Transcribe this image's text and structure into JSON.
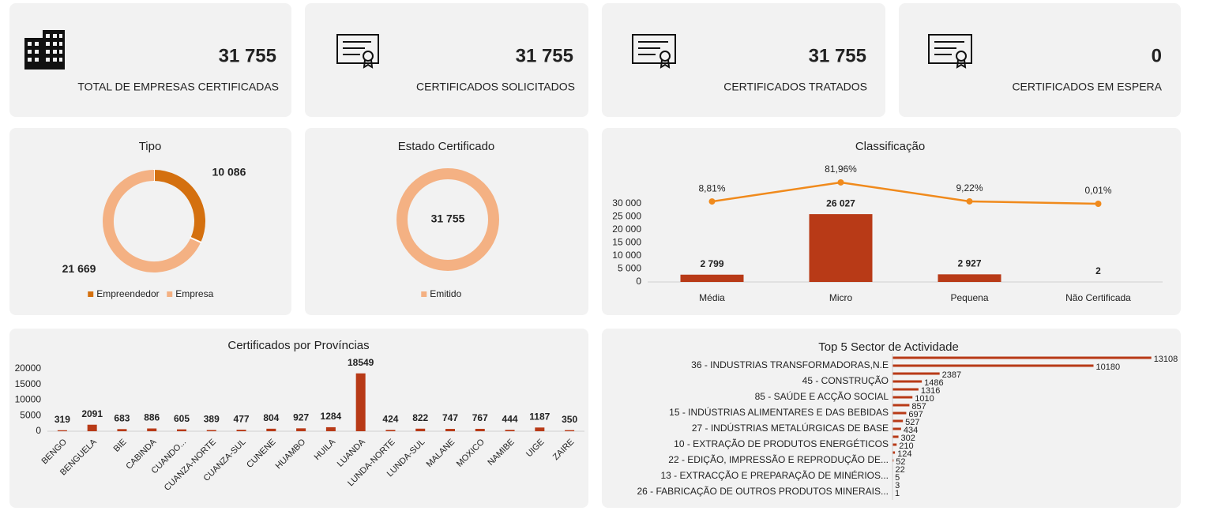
{
  "kpis": [
    {
      "value": "31 755",
      "label": "TOTAL DE EMPRESAS CERTIFICADAS"
    },
    {
      "value": "31 755",
      "label": "CERTIFICADOS SOLICITADOS"
    },
    {
      "value": "31 755",
      "label": "CERTIFICADOS TRATADOS"
    },
    {
      "value": "0",
      "label": "CERTIFICADOS EM ESPERA"
    }
  ],
  "chart_data": [
    {
      "type": "pie",
      "donut": true,
      "title": "Tipo",
      "categories": [
        "Empreendedor",
        "Empresa"
      ],
      "values": [
        10086,
        21669
      ],
      "value_labels": [
        "10 086",
        "21 669"
      ],
      "colors": [
        "#d4700f",
        "#f4b183"
      ],
      "legend": "bottom"
    },
    {
      "type": "pie",
      "donut": true,
      "title": "Estado Certificado",
      "categories": [
        "Emitido"
      ],
      "values": [
        31755
      ],
      "value_labels": [
        "31 755"
      ],
      "colors": [
        "#f4b183"
      ],
      "legend": "bottom"
    },
    {
      "type": "bar",
      "title": "Classificação",
      "categories": [
        "Média",
        "Micro",
        "Pequena",
        "Não Certificada"
      ],
      "series": [
        {
          "type": "bar",
          "color": "#b83a17",
          "values": [
            2799,
            26027,
            2927,
            2
          ],
          "value_labels": [
            "2 799",
            "26 027",
            "2 927",
            "2"
          ]
        },
        {
          "type": "line",
          "axis": "y2",
          "color": "#f08a1c",
          "values": [
            8.81,
            81.96,
            9.22,
            0.01
          ],
          "value_labels": [
            "8,81%",
            "81,96%",
            "9,22%",
            "0,01%"
          ]
        }
      ],
      "ylim": [
        0,
        40000
      ],
      "yticks": [
        {
          "value": 0,
          "label": "0"
        },
        {
          "value": 5000,
          "label": "5 000"
        },
        {
          "value": 10000,
          "label": "10 000"
        },
        {
          "value": 15000,
          "label": "15 000"
        },
        {
          "value": 20000,
          "label": "20 000"
        },
        {
          "value": 25000,
          "label": "25 000"
        },
        {
          "value": 30000,
          "label": "30 000"
        }
      ],
      "y2lim": [
        -300,
        100
      ]
    },
    {
      "type": "bar",
      "title": "Certificados por Províncias",
      "color": "#b83a17",
      "categories": [
        "BENGO",
        "BENGUELA",
        "BIE",
        "CABINDA",
        "CUANDO...",
        "CUANZA-NORTE",
        "CUANZA-SUL",
        "CUNENE",
        "HUAMBO",
        "HUILA",
        "LUANDA",
        "LUNDA-NORTE",
        "LUNDA-SUL",
        "MALANE",
        "MOXICO",
        "NAMIBE",
        "UIGE",
        "ZAIRE"
      ],
      "values": [
        319,
        2091,
        683,
        886,
        605,
        389,
        477,
        804,
        927,
        1284,
        18549,
        424,
        822,
        747,
        767,
        444,
        1187,
        350
      ],
      "ylim": [
        0,
        20000
      ],
      "yticks": [
        0,
        5000,
        10000,
        15000,
        20000
      ]
    },
    {
      "type": "bar",
      "orientation": "horizontal",
      "title": "Top 5 Sector de Actividade",
      "color": "#b83a17",
      "categories": [
        null,
        "36 - INDUSTRIAS TRANSFORMADORAS,N.E",
        null,
        "45 - CONSTRUÇÃO",
        null,
        "85 - SAÚDE E ACÇÃO SOCIAL",
        null,
        "15 - INDÚSTRIAS ALIMENTARES E DAS BEBIDAS",
        null,
        "27 - INDÚSTRIAS METALÚRGICAS DE BASE",
        null,
        "10 - EXTRAÇÃO DE PRODUTOS ENERGÉTICOS",
        null,
        "22 - EDIÇÃO, IMPRESSÃO E REPRODUÇÃO DE...",
        null,
        "13 - EXTRACÇÃO E PREPARAÇÃO DE MINÉRIOS...",
        null,
        "26 - FABRICAÇÃO DE OUTROS PRODUTOS MINERAIS..."
      ],
      "values": [
        13108,
        10180,
        2387,
        1486,
        1316,
        1010,
        857,
        697,
        527,
        434,
        302,
        210,
        124,
        52,
        22,
        5,
        3,
        1
      ],
      "xlim": [
        0,
        14000
      ]
    }
  ]
}
